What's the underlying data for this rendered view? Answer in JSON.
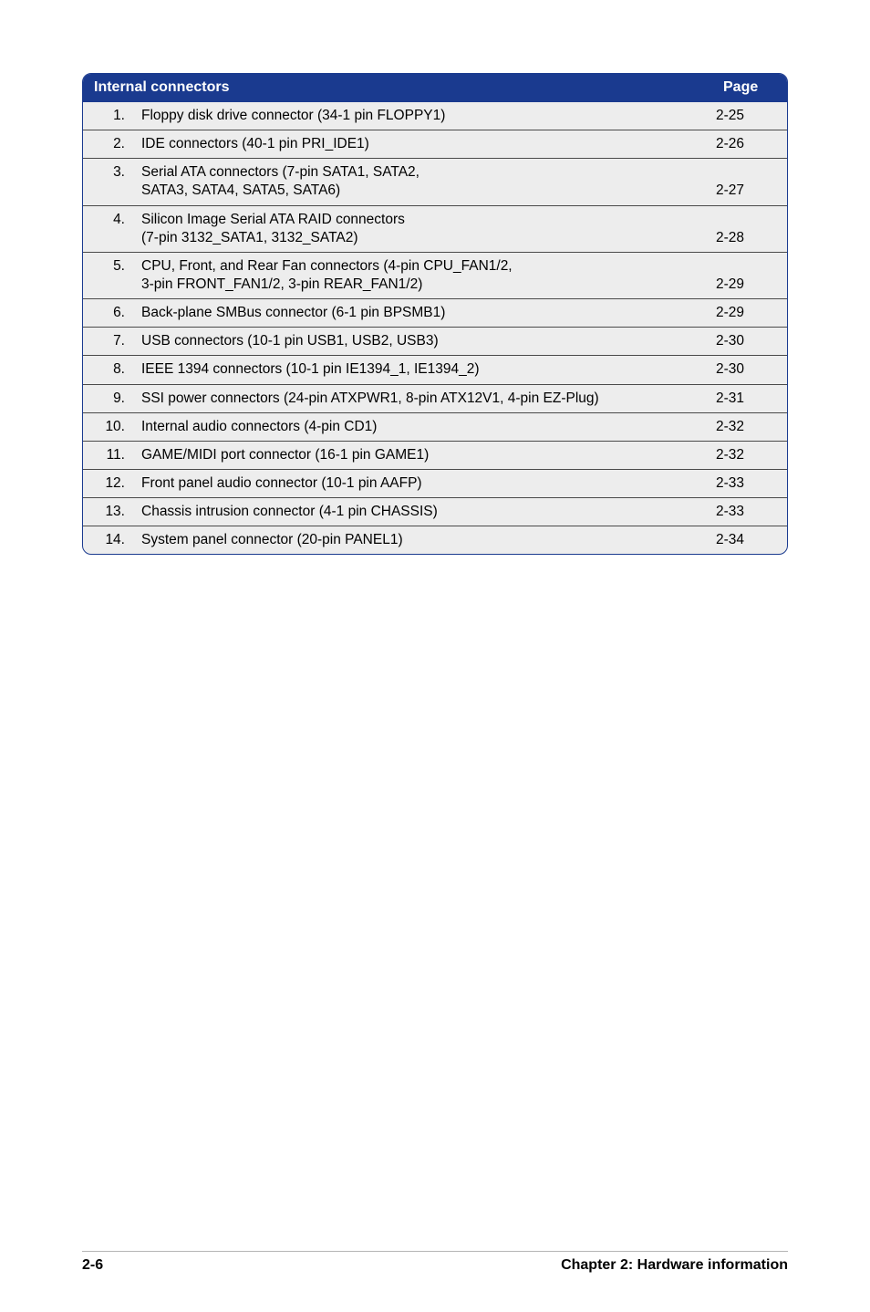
{
  "table": {
    "header_bg": "#1a3a8f",
    "header_fg": "#ffffff",
    "row_bg": "#ededed",
    "border_color": "#1a3a8f",
    "divider_color": "#4a4a4a",
    "header_title": "Internal connectors",
    "header_page_label": "Page",
    "rows": [
      {
        "num": "1.",
        "desc": "Floppy disk drive connector (34-1 pin FLOPPY1)",
        "page": "2-25"
      },
      {
        "num": "2.",
        "desc": "IDE connectors (40-1 pin PRI_IDE1)",
        "page": "2-26"
      },
      {
        "num": "3.",
        "desc": "Serial ATA connectors (7-pin SATA1, SATA2,\nSATA3, SATA4, SATA5, SATA6)",
        "page": "2-27"
      },
      {
        "num": "4.",
        "desc": "Silicon Image Serial ATA RAID connectors\n(7-pin 3132_SATA1, 3132_SATA2)",
        "page": "2-28"
      },
      {
        "num": "5.",
        "desc": "CPU, Front, and Rear Fan connectors (4-pin CPU_FAN1/2,\n3-pin FRONT_FAN1/2, 3-pin REAR_FAN1/2)",
        "page": "2-29"
      },
      {
        "num": "6.",
        "desc": "Back-plane SMBus connector (6-1 pin BPSMB1)",
        "page": "2-29"
      },
      {
        "num": "7.",
        "desc": "USB connectors (10-1 pin USB1, USB2, USB3)",
        "page": "2-30"
      },
      {
        "num": "8.",
        "desc": "IEEE 1394 connectors (10-1 pin IE1394_1, IE1394_2)",
        "page": "2-30"
      },
      {
        "num": "9.",
        "desc": "SSI power connectors (24-pin ATXPWR1, 8-pin ATX12V1, 4-pin EZ-Plug)",
        "page": "2-31"
      },
      {
        "num": "10.",
        "desc": "Internal audio connectors (4-pin CD1)",
        "page": "2-32"
      },
      {
        "num": "11.",
        "desc": "GAME/MIDI port connector (16-1 pin GAME1)",
        "page": "2-32"
      },
      {
        "num": "12.",
        "desc": "Front panel audio connector (10-1 pin AAFP)",
        "page": "2-33"
      },
      {
        "num": "13.",
        "desc": "Chassis intrusion connector (4-1 pin CHASSIS)",
        "page": "2-33"
      },
      {
        "num": "14.",
        "desc": "System panel connector (20-pin PANEL1)",
        "page": "2-34"
      }
    ]
  },
  "footer": {
    "page_number": "2-6",
    "chapter": "Chapter 2: Hardware information"
  }
}
